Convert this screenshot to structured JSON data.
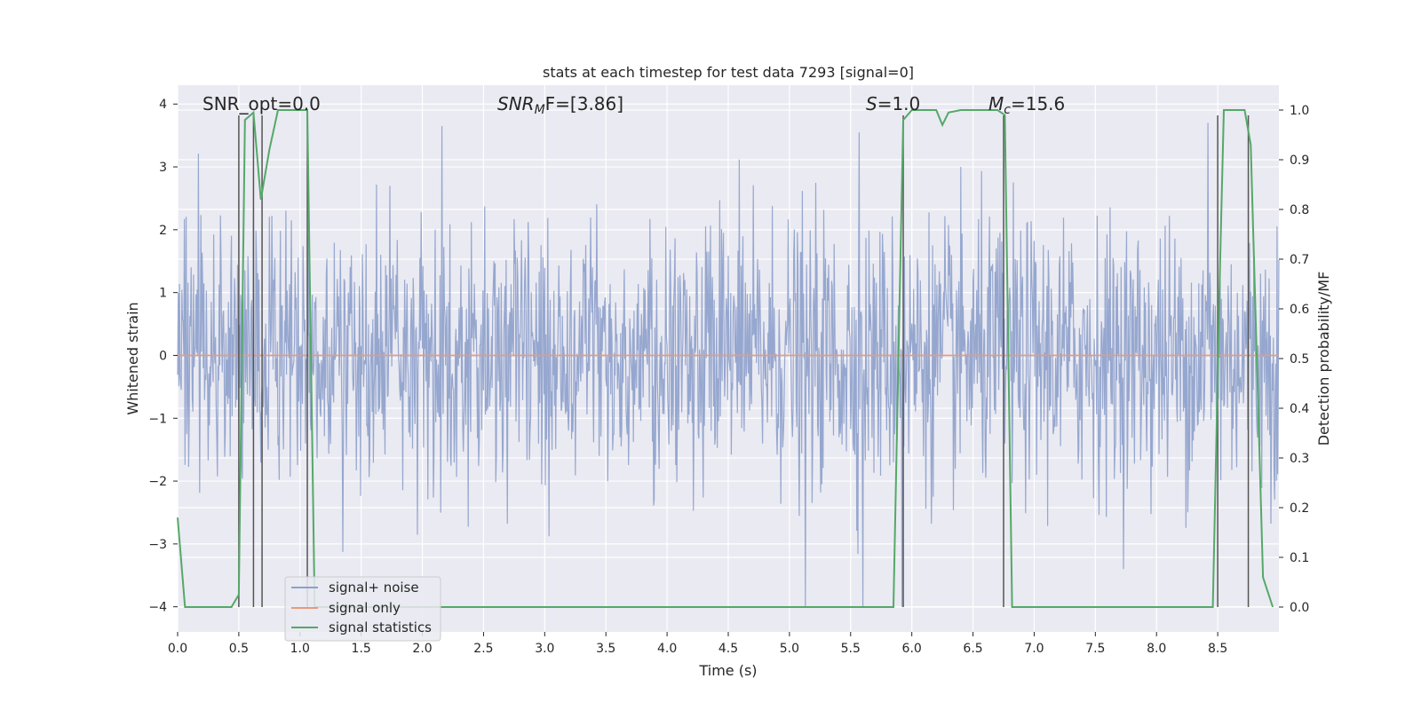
{
  "chart_data": {
    "type": "line",
    "title": "stats at each timestep for test data 7293 [signal=0]",
    "xlabel": "Time (s)",
    "ylabel_left": "Whitened strain",
    "ylabel_right": "Detection probability/MF",
    "xlim": [
      0.0,
      9.0
    ],
    "ylim_left": [
      -4.4,
      4.3
    ],
    "ylim_right": [
      -0.05,
      1.05
    ],
    "x_ticks": [
      "0.0",
      "0.5",
      "1.0",
      "1.5",
      "2.0",
      "2.5",
      "3.0",
      "3.5",
      "4.0",
      "4.5",
      "5.0",
      "5.5",
      "6.0",
      "6.5",
      "7.0",
      "7.5",
      "8.0",
      "8.5"
    ],
    "y_ticks_left": [
      "4",
      "3",
      "2",
      "1",
      "0",
      "−1",
      "−2",
      "−3",
      "−4"
    ],
    "y_ticks_right": [
      "1.0",
      "0.9",
      "0.8",
      "0.7",
      "0.6",
      "0.5",
      "0.4",
      "0.3",
      "0.2",
      "0.1",
      "0.0"
    ],
    "grid": true,
    "legend_placement": "lower-left",
    "annotations": {
      "snr_opt": "SNR_opt=0.0",
      "snr_mf_var": "SNR",
      "snr_mf_sub": "M",
      "snr_mf_rest": "F=[3.86]",
      "s_var": "S",
      "s_rest": "=1.0",
      "mc_var": "M",
      "mc_sub": "c",
      "mc_rest": "=15.6"
    },
    "series": [
      {
        "name": "signal+ noise",
        "axis": "left",
        "color": "#8da0cb",
        "style": "noise band, amplitude roughly within ±2 with spikes up to ±4",
        "notable_spikes": [
          {
            "x": 2.16,
            "y": 3.65
          },
          {
            "x": 5.57,
            "y": 3.55
          },
          {
            "x": 8.42,
            "y": 3.7
          },
          {
            "x": 5.13,
            "y": -4.0
          },
          {
            "x": 5.6,
            "y": -4.0
          },
          {
            "x": 5.92,
            "y": -4.0
          }
        ]
      },
      {
        "name": "signal only",
        "axis": "left",
        "color": "#e8997c",
        "x": [
          0.0,
          9.0
        ],
        "y": [
          0.0,
          0.0
        ]
      },
      {
        "name": "signal statistics",
        "axis": "right",
        "color": "#55a868",
        "x": [
          0.0,
          0.06,
          0.1,
          0.44,
          0.5,
          0.55,
          0.62,
          0.68,
          0.75,
          0.82,
          1.0,
          1.06,
          1.12,
          1.2,
          5.85,
          5.93,
          6.0,
          6.1,
          6.2,
          6.25,
          6.3,
          6.4,
          6.7,
          6.76,
          6.82,
          6.9,
          8.46,
          8.52,
          8.55,
          8.62,
          8.72,
          8.77,
          8.87,
          8.95
        ],
        "y": [
          0.18,
          0.0,
          0.0,
          0.0,
          0.025,
          0.98,
          0.995,
          0.82,
          0.92,
          1.0,
          1.0,
          1.0,
          0.0,
          0.0,
          0.0,
          0.98,
          1.0,
          1.0,
          1.0,
          0.97,
          0.995,
          1.0,
          1.0,
          0.99,
          0.0,
          0.0,
          0.0,
          0.7,
          1.0,
          1.0,
          1.0,
          0.93,
          0.06,
          0.0
        ]
      }
    ],
    "vertical_lines_x": [
      0.5,
      0.62,
      0.69,
      1.06,
      5.93,
      6.75,
      8.5,
      8.75
    ]
  },
  "colors": {
    "plot_bg": "#eaeaf2",
    "grid": "#ffffff",
    "vline": "#555555"
  }
}
